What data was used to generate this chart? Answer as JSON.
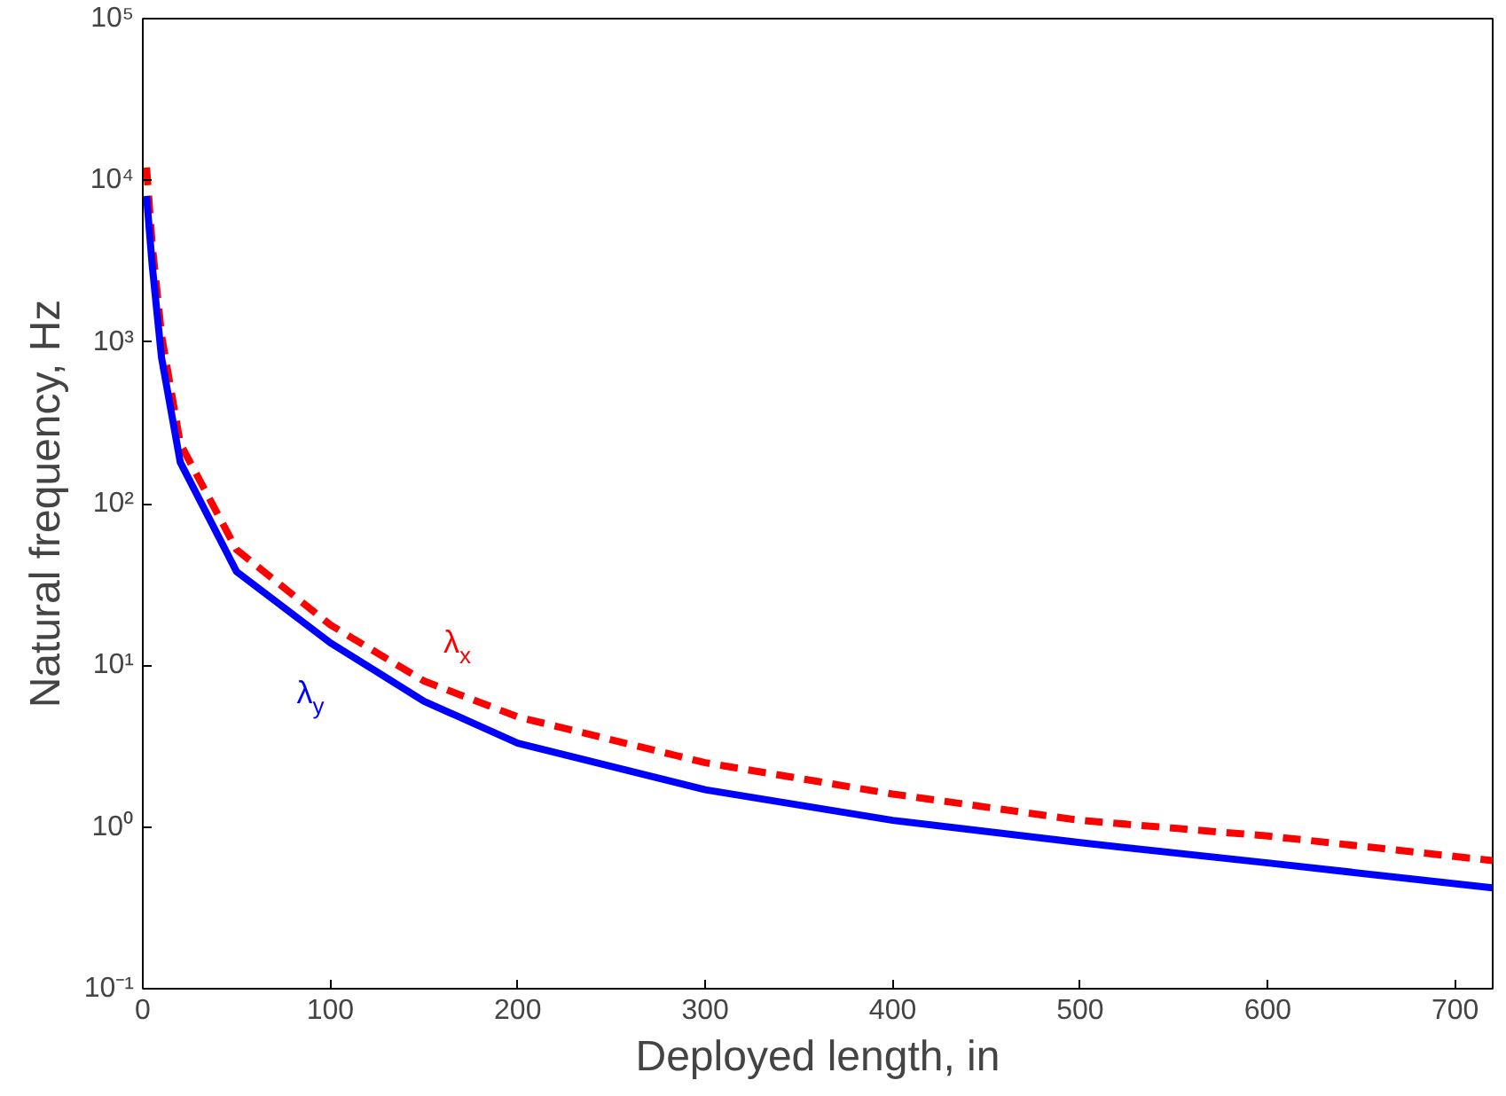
{
  "chart_data": {
    "type": "line",
    "xlabel": "Deployed length, in",
    "ylabel": "Natural frequency, Hz",
    "log": "y",
    "grid": false,
    "xlim": [
      0,
      720
    ],
    "xticks": [
      0,
      100,
      200,
      300,
      400,
      500,
      600,
      700
    ],
    "ylim": [
      0.1,
      100000
    ],
    "yticks": [
      {
        "value": 0.1,
        "label": "10⁻¹"
      },
      {
        "value": 1,
        "label": "10⁰"
      },
      {
        "value": 10,
        "label": "10¹"
      },
      {
        "value": 100,
        "label": "10²"
      },
      {
        "value": 1000,
        "label": "10³"
      },
      {
        "value": 10000,
        "label": "10⁴"
      },
      {
        "value": 100000,
        "label": "10⁵"
      }
    ],
    "series": [
      {
        "name": "λ$_{x}$",
        "color": "#ff0000",
        "line_style": "dashed",
        "x": [
          2,
          5,
          10,
          20,
          50,
          100,
          150,
          200,
          300,
          400,
          500,
          600,
          720
        ],
        "values": [
          12000,
          4000,
          1100,
          235,
          52,
          17.8,
          8,
          4.8,
          2.5,
          1.6,
          1.1,
          0.88,
          0.62
        ]
      },
      {
        "name": "λ$_{y}$",
        "color": "#0000ff",
        "line_style": "solid",
        "x": [
          2,
          5,
          10,
          20,
          50,
          100,
          150,
          200,
          300,
          400,
          500,
          600,
          720
        ],
        "values": [
          8000,
          3000,
          800,
          180,
          38,
          13.8,
          6,
          3.3,
          1.7,
          1.1,
          0.8,
          0.6,
          0.42
        ]
      }
    ]
  }
}
